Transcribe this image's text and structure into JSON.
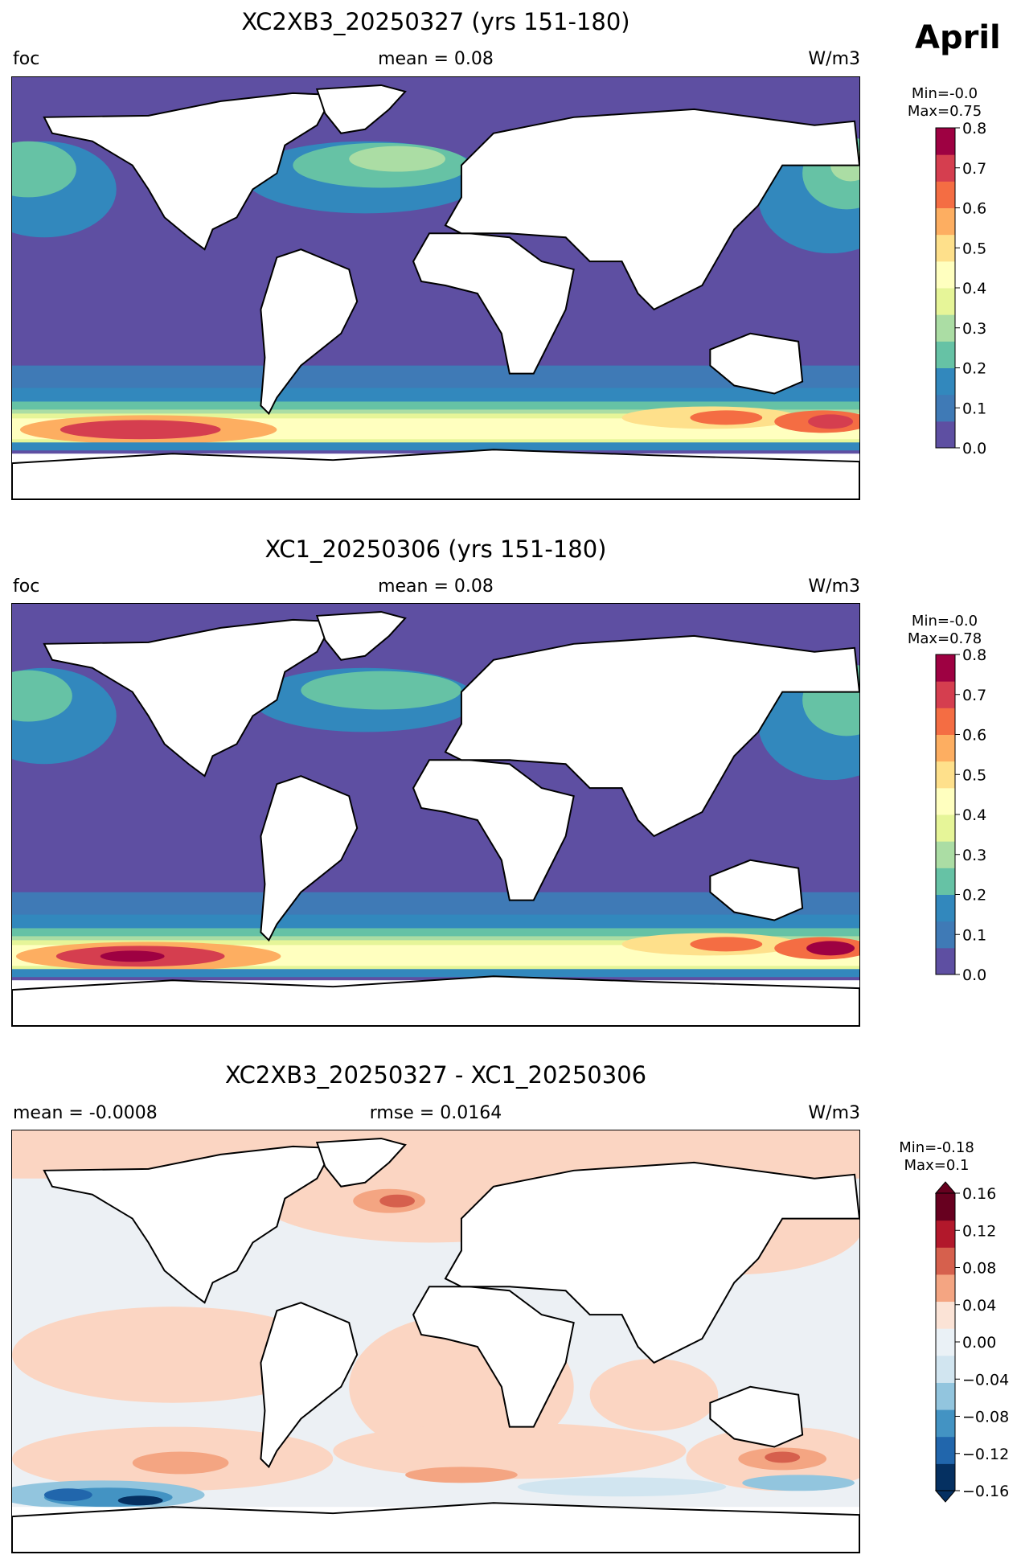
{
  "month": "April",
  "panels": [
    {
      "id": "p1",
      "title": "XC2XB3_20250327 (yrs 151-180)",
      "left_label": "foc",
      "center_label": "mean = 0.08",
      "right_label": "W/m3",
      "min_label": "Min=-0.0",
      "max_label": "Max=0.75",
      "colorbar": {
        "ticks": [
          "0.0",
          "0.1",
          "0.2",
          "0.3",
          "0.4",
          "0.5",
          "0.6",
          "0.7",
          "0.8"
        ],
        "colors": [
          "#5e4fa2",
          "#3f7ab6",
          "#3288bd",
          "#66c2a5",
          "#abdda4",
          "#e6f598",
          "#ffffbf",
          "#fee08b",
          "#fdae61",
          "#f46d43",
          "#d53e4f",
          "#9e0142"
        ]
      }
    },
    {
      "id": "p2",
      "title": "XC1_20250306 (yrs 151-180)",
      "left_label": "foc",
      "center_label": "mean = 0.08",
      "right_label": "W/m3",
      "min_label": "Min=-0.0",
      "max_label": "Max=0.78",
      "colorbar": {
        "ticks": [
          "0.0",
          "0.1",
          "0.2",
          "0.3",
          "0.4",
          "0.5",
          "0.6",
          "0.7",
          "0.8"
        ],
        "colors": [
          "#5e4fa2",
          "#3f7ab6",
          "#3288bd",
          "#66c2a5",
          "#abdda4",
          "#e6f598",
          "#ffffbf",
          "#fee08b",
          "#fdae61",
          "#f46d43",
          "#d53e4f",
          "#9e0142"
        ]
      }
    },
    {
      "id": "p3",
      "title": "XC2XB3_20250327 - XC1_20250306",
      "left_label": "mean = -0.0008",
      "center_label": "rmse = 0.0164",
      "right_label": "W/m3",
      "min_label": "Min=-0.18",
      "max_label": "Max=0.1",
      "colorbar": {
        "ticks": [
          "−0.16",
          "−0.12",
          "−0.08",
          "−0.04",
          "0.00",
          "0.04",
          "0.08",
          "0.12",
          "0.16"
        ],
        "colors": [
          "#053061",
          "#2166ac",
          "#4393c3",
          "#92c5de",
          "#d1e5f0",
          "#eaf1f6",
          "#fbe3d6",
          "#f4a582",
          "#d6604d",
          "#b2182b",
          "#67001f"
        ],
        "extend": "both"
      }
    }
  ],
  "colors": {
    "ocean_low": "#5e4fa2",
    "land": "#ffffff",
    "diff_neutral": "#ecf0f4",
    "diff_pos": "#fbd5c2"
  }
}
